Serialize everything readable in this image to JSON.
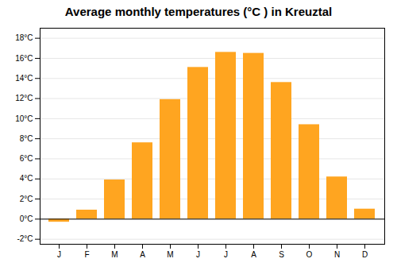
{
  "chart_data": {
    "type": "bar",
    "title": "Average monthly temperatures (°C ) in Kreuztal",
    "categories": [
      "J",
      "F",
      "M",
      "A",
      "M",
      "J",
      "J",
      "A",
      "S",
      "O",
      "N",
      "D"
    ],
    "values": [
      -0.3,
      0.9,
      3.9,
      7.6,
      11.9,
      15.1,
      16.6,
      16.5,
      13.6,
      9.4,
      4.2,
      1.0
    ],
    "color": "#FFA520",
    "ylim": [
      -2.5,
      19.0
    ],
    "yticks": [
      {
        "value": -2,
        "label": "-2°C"
      },
      {
        "value": 0,
        "label": "0°C"
      },
      {
        "value": 2,
        "label": "2°C"
      },
      {
        "value": 4,
        "label": "4°C"
      },
      {
        "value": 6,
        "label": "6°C"
      },
      {
        "value": 8,
        "label": "8°C"
      },
      {
        "value": 10,
        "label": "10°C"
      },
      {
        "value": 12,
        "label": "12°C"
      },
      {
        "value": 14,
        "label": "14°C"
      },
      {
        "value": 16,
        "label": "16°C"
      },
      {
        "value": 18,
        "label": "18°C"
      }
    ],
    "grid": true
  }
}
